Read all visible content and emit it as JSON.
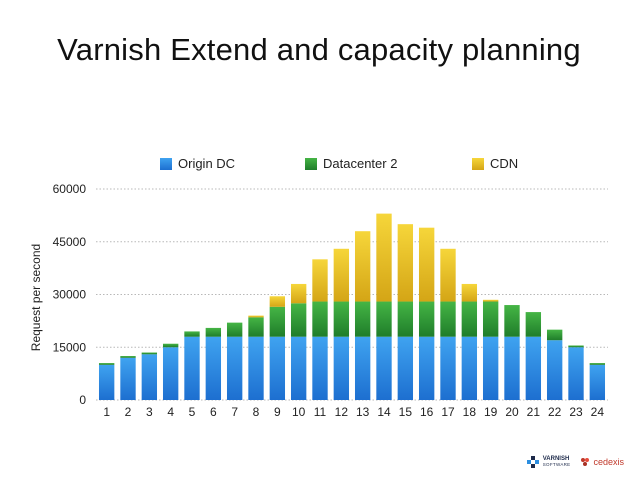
{
  "title": "Varnish Extend and capacity planning",
  "logos": {
    "varnish_line1": "VARNISH",
    "varnish_line2": "SOFTWARE",
    "cedexis": "cedexis"
  },
  "chart_data": {
    "type": "bar",
    "stacked": true,
    "title": "Varnish Extend and capacity planning",
    "xlabel": "",
    "ylabel": "Request per second",
    "ylim": [
      0,
      60000
    ],
    "yticks": [
      0,
      15000,
      30000,
      45000,
      60000
    ],
    "grid": true,
    "legend_position": "top",
    "categories": [
      "1",
      "2",
      "3",
      "4",
      "5",
      "6",
      "7",
      "8",
      "9",
      "10",
      "11",
      "12",
      "13",
      "14",
      "15",
      "16",
      "17",
      "18",
      "19",
      "20",
      "21",
      "22",
      "23",
      "24"
    ],
    "series": [
      {
        "name": "Origin DC",
        "color": "#2b8ee0",
        "values": [
          10000,
          12000,
          13000,
          15000,
          18000,
          18000,
          18000,
          18000,
          18000,
          18000,
          18000,
          18000,
          18000,
          18000,
          18000,
          18000,
          18000,
          18000,
          18000,
          18000,
          18000,
          17000,
          15000,
          10000
        ]
      },
      {
        "name": "Datacenter 2",
        "color": "#2f9e3a",
        "values": [
          500,
          500,
          500,
          1000,
          1500,
          2500,
          4000,
          5500,
          8500,
          9500,
          10000,
          10000,
          10000,
          10000,
          10000,
          10000,
          10000,
          10000,
          10000,
          9000,
          7000,
          3000,
          500,
          500
        ]
      },
      {
        "name": "CDN",
        "color": "#e8bd22",
        "values": [
          0,
          0,
          0,
          0,
          0,
          0,
          0,
          500,
          3000,
          5500,
          12000,
          15000,
          20000,
          25000,
          22000,
          21000,
          15000,
          5000,
          500,
          0,
          0,
          0,
          0,
          0
        ]
      }
    ]
  }
}
